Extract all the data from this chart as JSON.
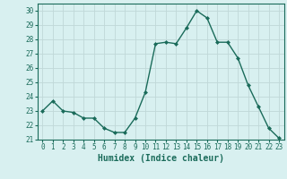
{
  "x": [
    0,
    1,
    2,
    3,
    4,
    5,
    6,
    7,
    8,
    9,
    10,
    11,
    12,
    13,
    14,
    15,
    16,
    17,
    18,
    19,
    20,
    21,
    22,
    23
  ],
  "y": [
    23.0,
    23.7,
    23.0,
    22.9,
    22.5,
    22.5,
    21.8,
    21.5,
    21.5,
    22.5,
    24.3,
    27.7,
    27.8,
    27.7,
    28.8,
    30.0,
    29.5,
    27.8,
    27.8,
    26.7,
    24.8,
    23.3,
    21.8,
    21.1
  ],
  "line_color": "#1a6b5a",
  "marker": "D",
  "marker_size": 2.0,
  "bg_color": "#d8f0f0",
  "grid_color": "#c0d8d8",
  "xlabel": "Humidex (Indice chaleur)",
  "xlim": [
    -0.5,
    23.5
  ],
  "ylim": [
    21.0,
    30.5
  ],
  "yticks": [
    21,
    22,
    23,
    24,
    25,
    26,
    27,
    28,
    29,
    30
  ],
  "xticks": [
    0,
    1,
    2,
    3,
    4,
    5,
    6,
    7,
    8,
    9,
    10,
    11,
    12,
    13,
    14,
    15,
    16,
    17,
    18,
    19,
    20,
    21,
    22,
    23
  ],
  "tick_label_fontsize": 5.5,
  "xlabel_fontsize": 7.0,
  "linewidth": 1.0
}
